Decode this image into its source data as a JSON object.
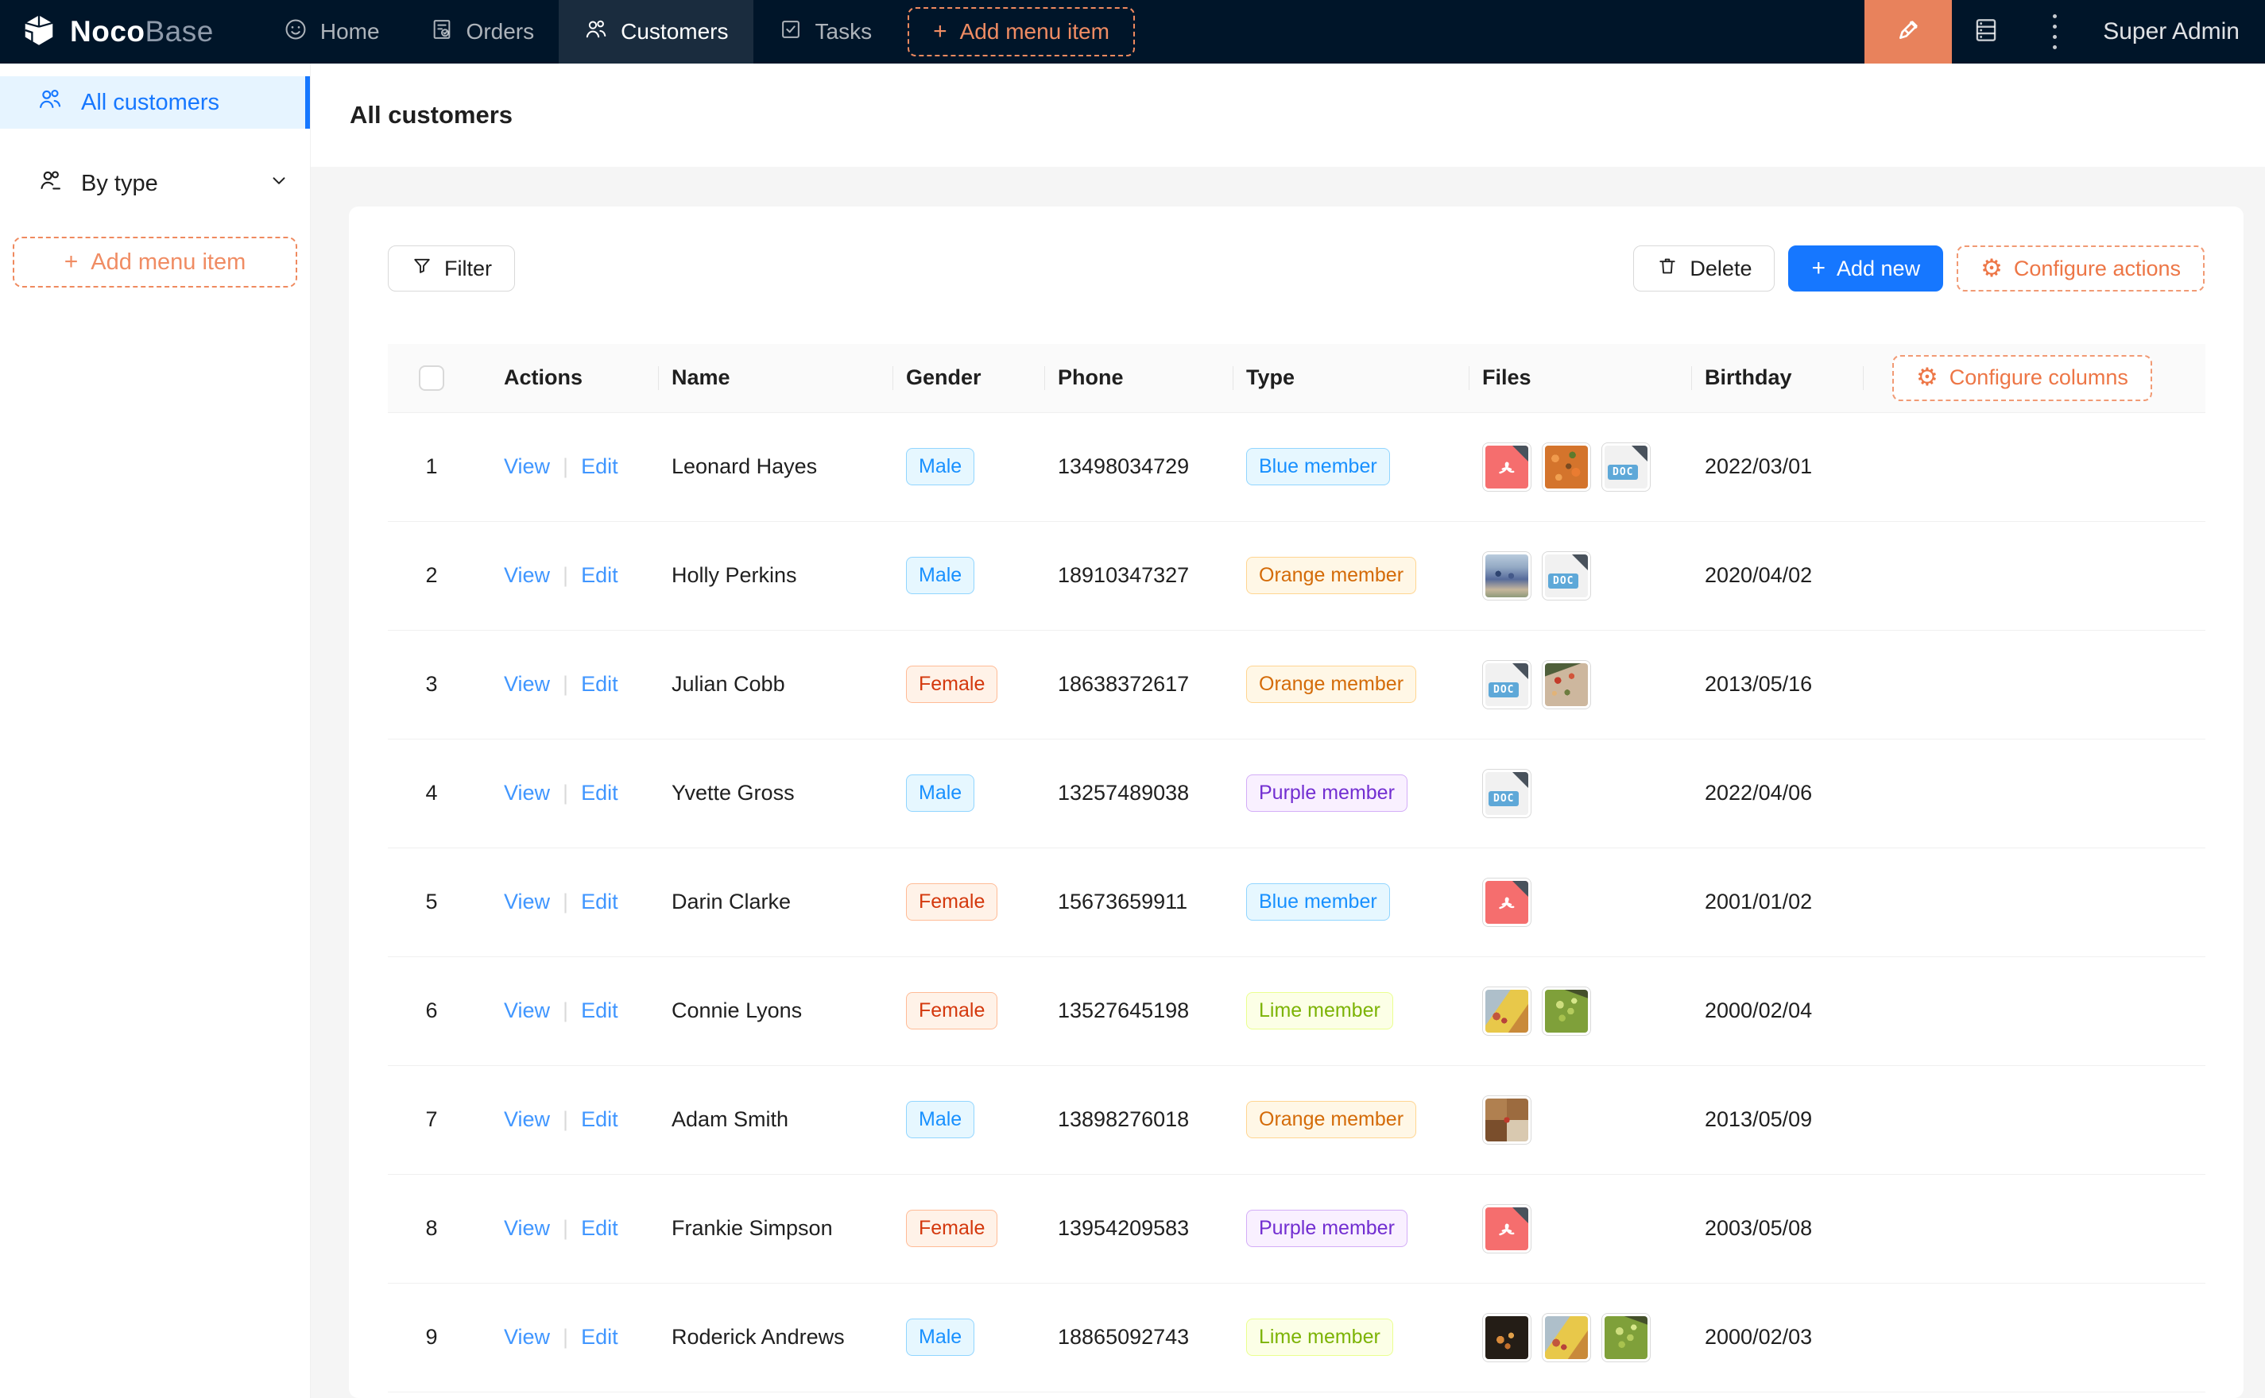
{
  "navbar": {
    "brand": {
      "bold": "Noco",
      "light": "Base"
    },
    "items": [
      {
        "label": "Home",
        "icon": "home-smile-icon",
        "active": false
      },
      {
        "label": "Orders",
        "icon": "orders-icon",
        "active": false
      },
      {
        "label": "Customers",
        "icon": "customers-icon",
        "active": true
      },
      {
        "label": "Tasks",
        "icon": "tasks-icon",
        "active": false
      }
    ],
    "add_menu_item_label": "Add menu item",
    "user": "Super Admin",
    "icons_right": [
      "ui-editor-highlighter-icon",
      "database-icon",
      "more-dots-icon"
    ]
  },
  "sidebar": {
    "items": [
      {
        "label": "All customers",
        "icon": "customers-icon",
        "active": true
      },
      {
        "label": "By type",
        "icon": "customer-type-icon",
        "active": false,
        "has_chevron": true
      }
    ],
    "add_menu_item_label": "Add menu item"
  },
  "page": {
    "title": "All customers"
  },
  "toolbar": {
    "filter_label": "Filter",
    "delete_label": "Delete",
    "add_new_label": "Add new",
    "configure_actions_label": "Configure actions"
  },
  "table": {
    "configure_columns_label": "Configure columns",
    "columns": [
      "Actions",
      "Name",
      "Gender",
      "Phone",
      "Type",
      "Files",
      "Birthday"
    ],
    "actions": {
      "view": "View",
      "divider": "|",
      "edit": "Edit"
    },
    "file_labels": {
      "doc_badge": "DOC"
    },
    "tag_colors": {
      "Male": "blue",
      "Female": "volcano",
      "Blue member": "blue",
      "Orange member": "orange",
      "Purple member": "purple",
      "Lime member": "lime"
    },
    "rows": [
      {
        "index": 1,
        "name": "Leonard Hayes",
        "gender": "Male",
        "phone": "13498034729",
        "type": "Blue member",
        "files": [
          {
            "kind": "pdf"
          },
          {
            "kind": "img",
            "variant": "food-orange"
          },
          {
            "kind": "doc"
          }
        ],
        "birthday": "2022/03/01"
      },
      {
        "index": 2,
        "name": "Holly Perkins",
        "gender": "Male",
        "phone": "18910347327",
        "type": "Orange member",
        "files": [
          {
            "kind": "img",
            "variant": "people-blue"
          },
          {
            "kind": "doc"
          }
        ],
        "birthday": "2020/04/02"
      },
      {
        "index": 3,
        "name": "Julian Cobb",
        "gender": "Female",
        "phone": "18638372617",
        "type": "Orange member",
        "files": [
          {
            "kind": "doc"
          },
          {
            "kind": "img",
            "variant": "pizza"
          }
        ],
        "birthday": "2013/05/16"
      },
      {
        "index": 4,
        "name": "Yvette Gross",
        "gender": "Male",
        "phone": "13257489038",
        "type": "Purple member",
        "files": [
          {
            "kind": "doc"
          }
        ],
        "birthday": "2022/04/06"
      },
      {
        "index": 5,
        "name": "Darin Clarke",
        "gender": "Female",
        "phone": "15673659911",
        "type": "Blue member",
        "files": [
          {
            "kind": "pdf"
          }
        ],
        "birthday": "2001/01/02"
      },
      {
        "index": 6,
        "name": "Connie Lyons",
        "gender": "Female",
        "phone": "13527645198",
        "type": "Lime member",
        "files": [
          {
            "kind": "img",
            "variant": "fruit-banana"
          },
          {
            "kind": "img",
            "variant": "grapes"
          }
        ],
        "birthday": "2000/02/04"
      },
      {
        "index": 7,
        "name": "Adam Smith",
        "gender": "Male",
        "phone": "13898276018",
        "type": "Orange member",
        "files": [
          {
            "kind": "img",
            "variant": "food-collage"
          }
        ],
        "birthday": "2013/05/09"
      },
      {
        "index": 8,
        "name": "Frankie Simpson",
        "gender": "Female",
        "phone": "13954209583",
        "type": "Purple member",
        "files": [
          {
            "kind": "pdf"
          }
        ],
        "birthday": "2003/05/08"
      },
      {
        "index": 9,
        "name": "Roderick Andrews",
        "gender": "Male",
        "phone": "18865092743",
        "type": "Lime member",
        "files": [
          {
            "kind": "img",
            "variant": "fruit-dark"
          },
          {
            "kind": "img",
            "variant": "fruit-banana"
          },
          {
            "kind": "img",
            "variant": "grapes"
          }
        ],
        "birthday": "2000/02/03"
      }
    ]
  },
  "colors": {
    "navbar_bg": "#001529",
    "accent_orange": "#e8825c",
    "primary_blue": "#1677ff",
    "active_sidebar_bg": "#e6f4ff",
    "page_bg": "#f5f5f5",
    "pdf_red": "#f56e6e",
    "doc_badge_blue": "#5ea8d8"
  }
}
